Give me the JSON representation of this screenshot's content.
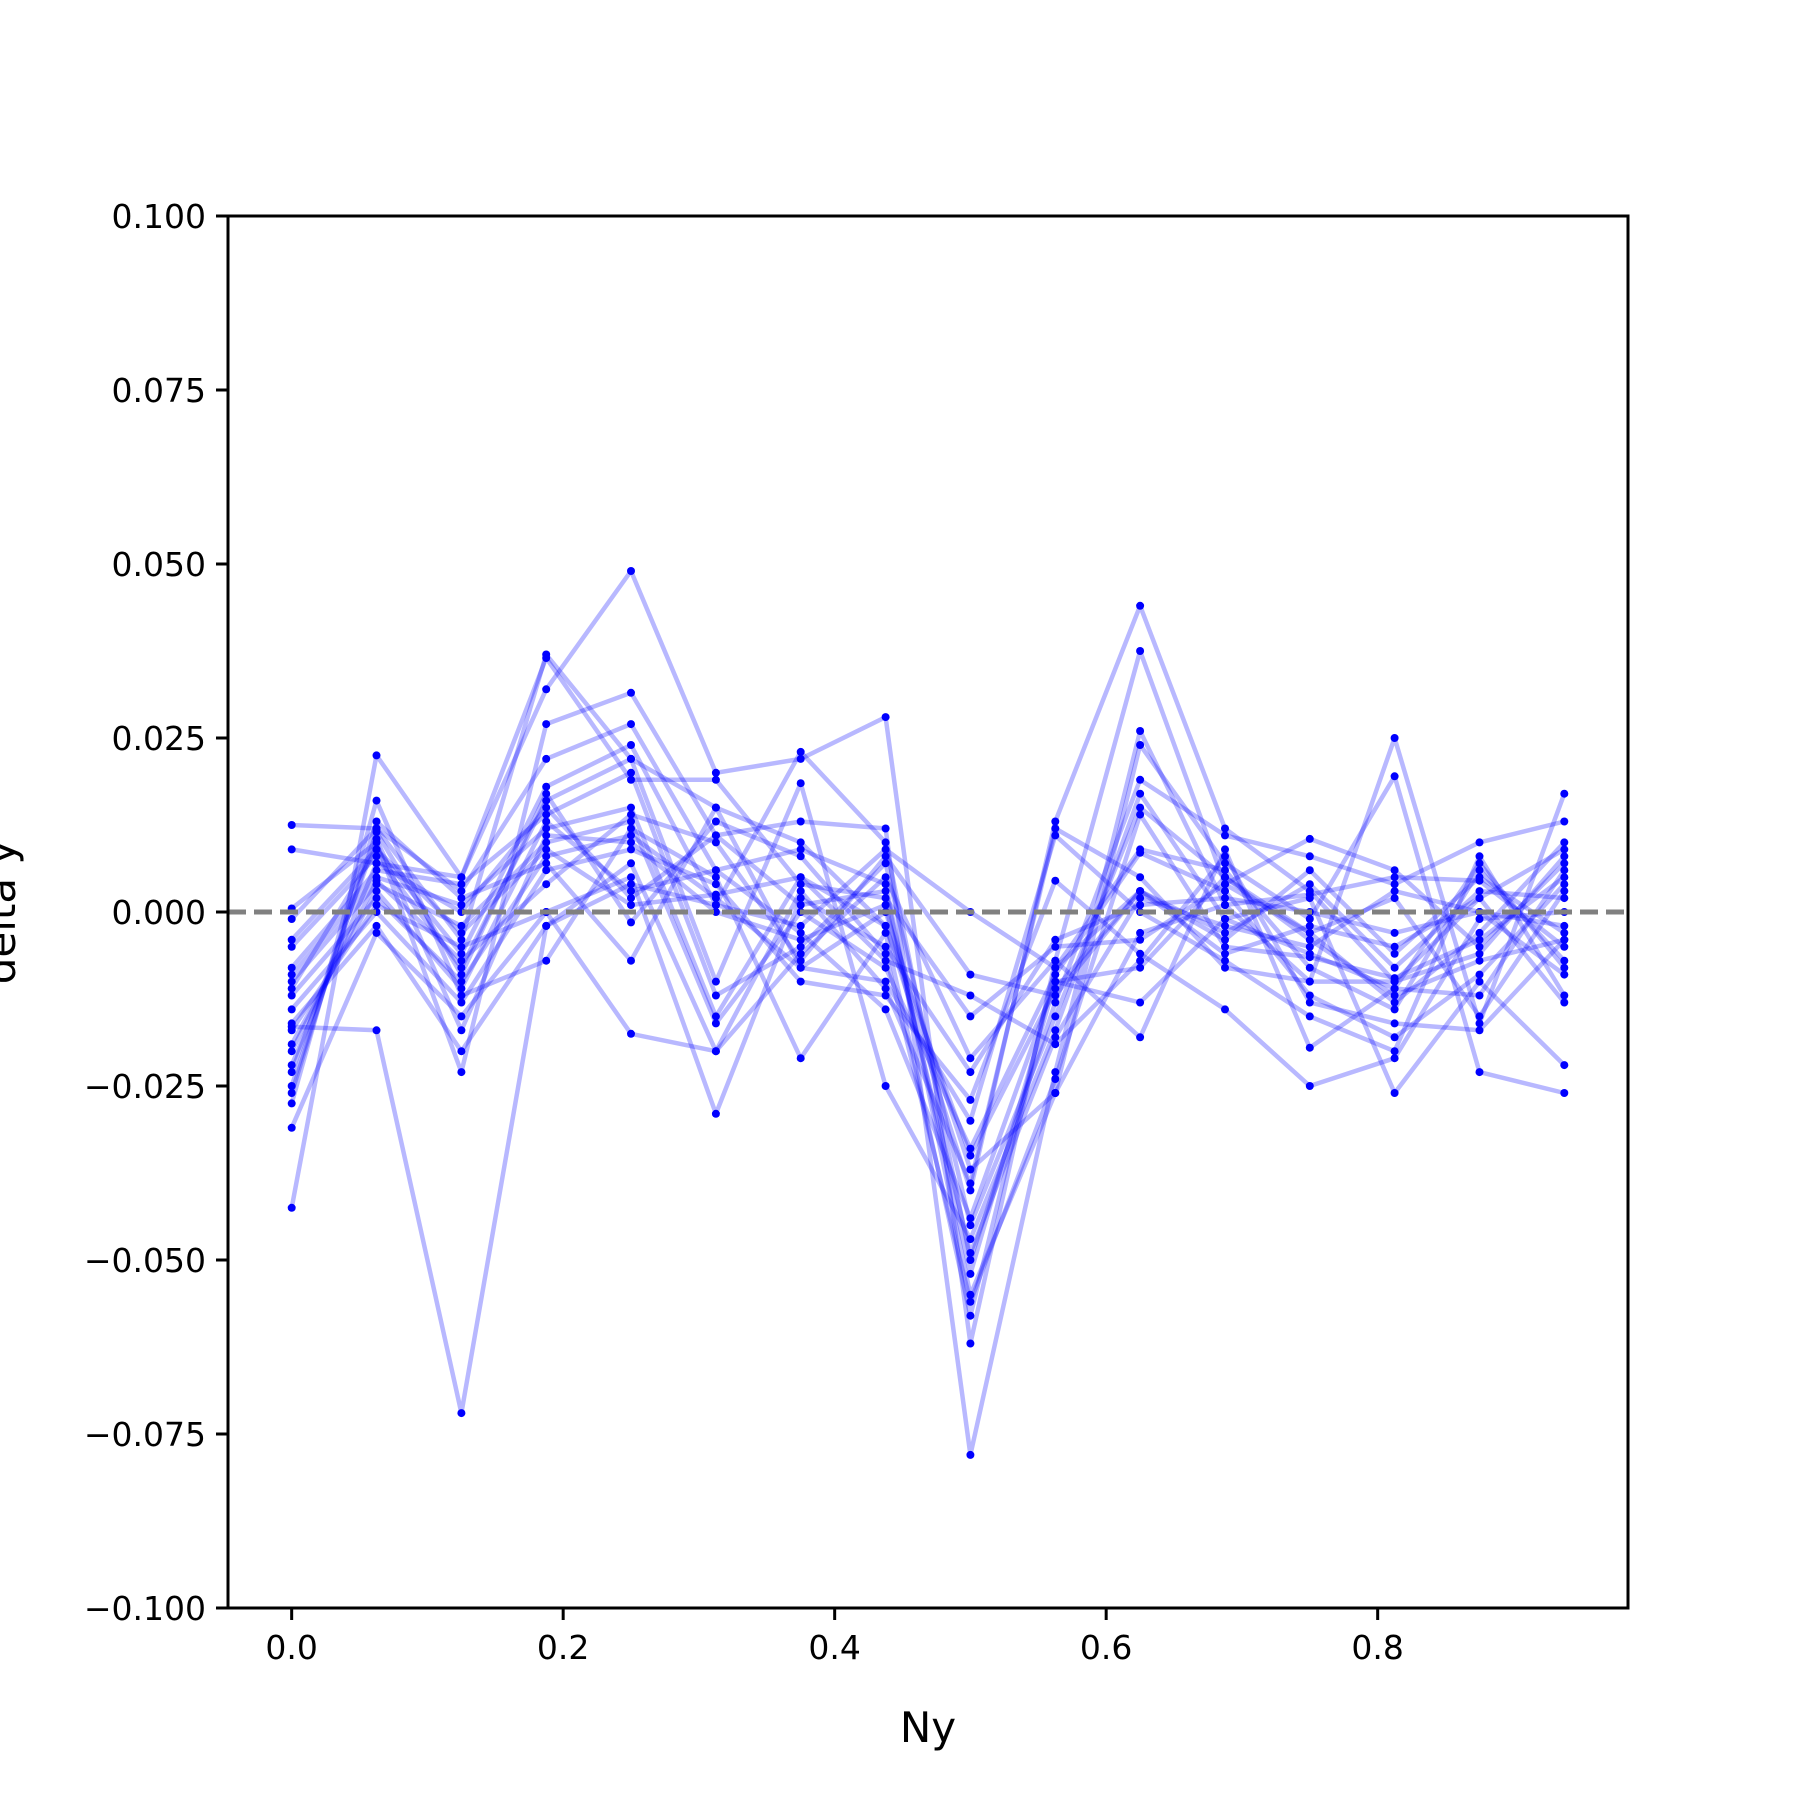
{
  "chart_data": {
    "type": "line",
    "title": "",
    "xlabel": "Ny",
    "ylabel": "delta y",
    "xlim": [
      -0.0469,
      0.9844
    ],
    "ylim": [
      -0.1,
      0.1
    ],
    "xticks": [
      0.0,
      0.2,
      0.4,
      0.6,
      0.8
    ],
    "xtick_labels": [
      "0.0",
      "0.2",
      "0.4",
      "0.6",
      "0.8"
    ],
    "yticks": [
      -0.1,
      -0.075,
      -0.05,
      -0.025,
      0.0,
      0.025,
      0.05,
      0.075,
      0.1
    ],
    "ytick_labels": [
      "−0.100",
      "−0.075",
      "−0.050",
      "−0.025",
      "0.000",
      "0.025",
      "0.050",
      "0.075",
      "0.100"
    ],
    "grid": false,
    "legend": false,
    "series_color": "#0000ff",
    "series_line_alpha": 0.28,
    "reference_line": {
      "y": 0.0,
      "style": "dashed",
      "color": "#808080"
    },
    "x": [
      0.0,
      0.0625,
      0.125,
      0.1875,
      0.25,
      0.3125,
      0.375,
      0.4375,
      0.5,
      0.5625,
      0.625,
      0.6875,
      0.75,
      0.8125,
      0.875,
      0.9375
    ],
    "series": [
      {
        "values": [
          0.0125,
          0.012,
          -0.004,
          0.037,
          0.022,
          0.015,
          0.01,
          -0.002,
          -0.04,
          0.013,
          0.044,
          0.012,
          0.003,
          -0.01,
          0.002,
          0.009
        ]
      },
      {
        "values": [
          0.009,
          0.007,
          0.005,
          0.032,
          0.049,
          0.02,
          0.022,
          0.028,
          -0.062,
          -0.007,
          0.0375,
          0.004,
          0.0105,
          0.006,
          -0.005,
          0.007
        ]
      },
      {
        "values": [
          0.0005,
          0.01,
          -0.023,
          0.027,
          0.0315,
          0.011,
          0.013,
          0.012,
          -0.078,
          -0.023,
          0.026,
          0.001,
          -0.01,
          0.025,
          -0.016,
          0.017
        ]
      },
      {
        "values": [
          -0.001,
          0.012,
          0.003,
          0.022,
          0.027,
          0.006,
          0.009,
          0.004,
          -0.055,
          -0.026,
          0.024,
          0.007,
          -0.001,
          0.0195,
          -0.023,
          -0.026
        ]
      },
      {
        "values": [
          -0.004,
          0.009,
          -0.006,
          0.018,
          0.024,
          0.001,
          0.023,
          0.01,
          -0.05,
          -0.013,
          0.019,
          0.011,
          0.008,
          0.004,
          0.01,
          0.013
        ]
      },
      {
        "values": [
          -0.005,
          0.008,
          -0.008,
          0.016,
          0.022,
          -0.01,
          0.0185,
          -0.025,
          -0.047,
          -0.017,
          0.017,
          -0.001,
          -0.006,
          -0.011,
          0.007,
          -0.008
        ]
      },
      {
        "values": [
          -0.008,
          0.006,
          0.004,
          0.014,
          0.02,
          -0.012,
          -0.005,
          0.007,
          -0.045,
          -0.015,
          0.015,
          0.005,
          -0.003,
          -0.013,
          -0.003,
          0.01
        ]
      },
      {
        "values": [
          -0.009,
          0.005,
          0.001,
          0.012,
          0.015,
          -0.015,
          0.005,
          -0.002,
          -0.035,
          -0.011,
          0.003,
          -0.004,
          0.006,
          -0.006,
          0.005,
          -0.003
        ]
      },
      {
        "values": [
          -0.01,
          0.004,
          -0.002,
          0.01,
          0.013,
          -0.016,
          0.0,
          -0.008,
          -0.034,
          -0.009,
          0.0085,
          0.003,
          -0.012,
          -0.018,
          -0.009,
          0.004
        ]
      },
      {
        "values": [
          -0.012,
          0.002,
          -0.01,
          0.008,
          0.011,
          0.002,
          -0.008,
          -0.01,
          -0.03,
          0.011,
          0.0,
          -0.007,
          -0.015,
          -0.02,
          0.008,
          -0.012
        ]
      },
      {
        "values": [
          -0.014,
          0.0,
          -0.013,
          0.006,
          0.009,
          0.004,
          -0.01,
          -0.012,
          -0.027,
          0.0045,
          -0.006,
          -0.014,
          -0.025,
          -0.021,
          -0.001,
          0.0
        ]
      },
      {
        "values": [
          -0.016,
          -0.002,
          -0.02,
          -0.002,
          0.007,
          -0.02,
          -0.006,
          0.005,
          -0.021,
          -0.007,
          -0.018,
          0.009,
          -0.0195,
          -0.011,
          -0.012,
          0.006
        ]
      },
      {
        "values": [
          -0.017,
          0.001,
          -0.005,
          0.0,
          0.005,
          -0.029,
          0.002,
          -0.005,
          -0.023,
          -0.004,
          0.001,
          0.002,
          0.0,
          -0.003,
          0.0,
          -0.002
        ]
      },
      {
        "values": [
          -0.019,
          0.003,
          -0.011,
          0.013,
          0.003,
          0.006,
          -0.003,
          -0.014,
          -0.044,
          -0.01,
          -0.013,
          -0.001,
          0.002,
          -0.026,
          -0.01,
          -0.022
        ]
      },
      {
        "values": [
          -0.022,
          0.007,
          0.0,
          0.015,
          0.002,
          0.011,
          0.001,
          0.003,
          -0.052,
          -0.01,
          -0.008,
          0.005,
          -0.004,
          -0.012,
          -0.007,
          -0.004
        ]
      },
      {
        "values": [
          -0.023,
          0.0105,
          -0.017,
          0.011,
          0.01,
          0.0,
          -0.004,
          0.001,
          -0.049,
          -0.018,
          0.002,
          -0.002,
          -0.005,
          0.003,
          0.0,
          -0.009
        ]
      },
      {
        "values": [
          -0.025,
          0.0115,
          -0.009,
          0.017,
          -0.0015,
          0.013,
          0.008,
          -0.006,
          -0.056,
          -0.024,
          0.014,
          -0.005,
          -0.0065,
          -0.0095,
          -0.004,
          0.005
        ]
      },
      {
        "values": [
          -0.026,
          0.013,
          0.002,
          0.007,
          -0.007,
          0.015,
          -0.008,
          0.0,
          -0.037,
          -0.026,
          -0.003,
          0.001,
          0.0025,
          0.005,
          0.0045,
          -0.005
        ]
      },
      {
        "values": [
          -0.0275,
          0.016,
          -0.012,
          -0.007,
          0.012,
          0.005,
          -0.021,
          -0.003,
          -0.058,
          -0.008,
          0.009,
          0.006,
          -0.008,
          -0.014,
          0.006,
          -0.007
        ]
      },
      {
        "values": [
          -0.031,
          -0.003,
          -0.015,
          0.0,
          -0.0175,
          -0.02,
          0.003,
          -0.011,
          -0.039,
          0.012,
          0.005,
          -0.008,
          -0.01,
          -0.01,
          -0.006,
          0.008
        ]
      },
      {
        "values": [
          -0.0425,
          0.0225,
          0.005,
          0.0365,
          0.019,
          0.019,
          0.004,
          0.002,
          -0.015,
          -0.005,
          -0.004,
          0.004,
          -0.003,
          0.002,
          -0.015,
          0.003
        ]
      },
      {
        "values": [
          -0.0165,
          -0.017,
          -0.072,
          -0.002,
          0.004,
          0.001,
          -0.002,
          0.009,
          0.0,
          -0.008,
          0.003,
          -0.006,
          -0.002,
          -0.005,
          0.002,
          -0.013
        ]
      },
      {
        "values": [
          -0.011,
          0.009,
          -0.003,
          0.009,
          0.001,
          0.0025,
          0.005,
          -0.007,
          -0.012,
          -0.019,
          -0.007,
          0.008,
          -0.013,
          -0.016,
          -0.017,
          -0.004
        ]
      },
      {
        "values": [
          -0.02,
          0.0045,
          -0.007,
          0.004,
          0.014,
          0.01,
          -0.007,
          0.008,
          -0.009,
          -0.012,
          0.003,
          -0.003,
          0.004,
          -0.008,
          0.003,
          0.002
        ]
      }
    ]
  }
}
